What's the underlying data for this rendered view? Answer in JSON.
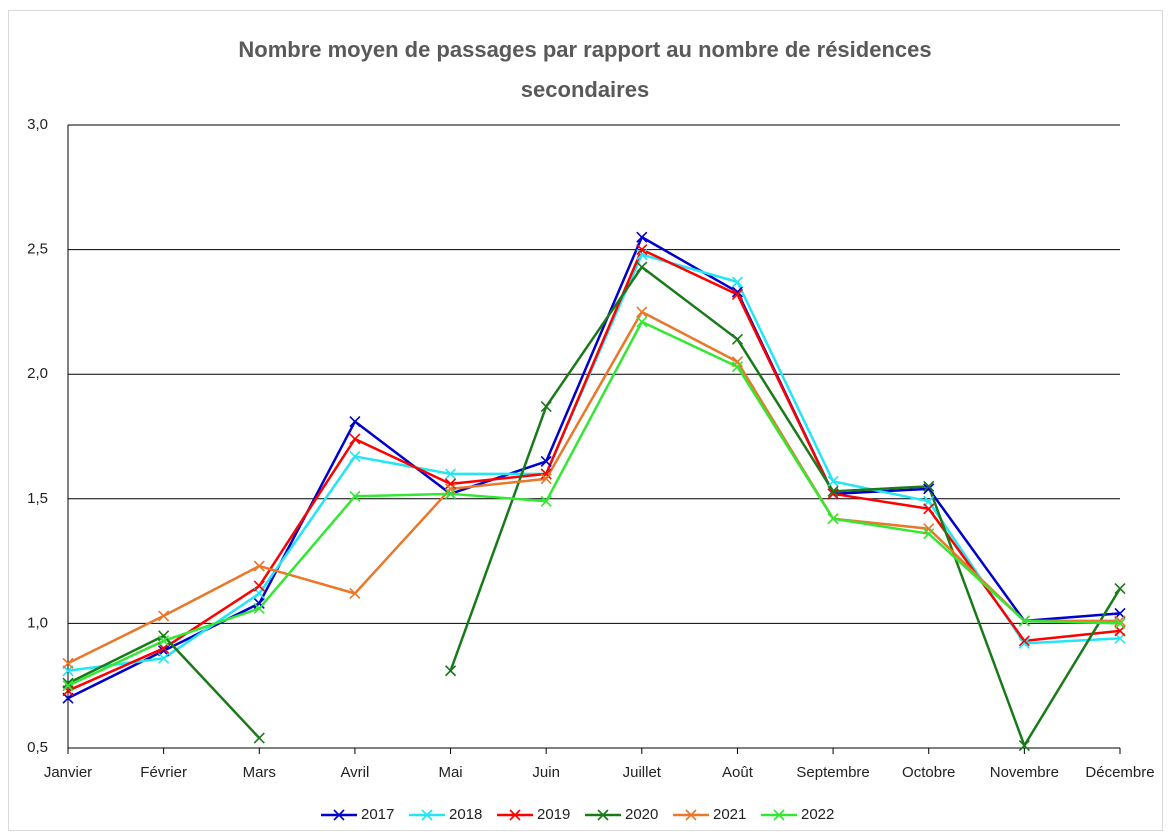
{
  "chart_data": {
    "type": "line",
    "title": "Nombre moyen de passages par rapport au nombre de résidences secondaires",
    "categories": [
      "Janvier",
      "Février",
      "Mars",
      "Avril",
      "Mai",
      "Juin",
      "Juillet",
      "Août",
      "Septembre",
      "Octobre",
      "Novembre",
      "Décembre"
    ],
    "series": [
      {
        "name": "2017",
        "color": "#0000cc",
        "values": [
          0.7,
          0.89,
          1.08,
          1.81,
          1.52,
          1.65,
          2.55,
          2.33,
          1.52,
          1.54,
          1.01,
          1.04
        ]
      },
      {
        "name": "2018",
        "color": "#22e6f5",
        "values": [
          0.81,
          0.86,
          1.12,
          1.67,
          1.6,
          1.6,
          2.48,
          2.37,
          1.57,
          1.49,
          0.92,
          0.94
        ]
      },
      {
        "name": "2019",
        "color": "#ff0000",
        "values": [
          0.73,
          0.9,
          1.15,
          1.74,
          1.56,
          1.6,
          2.5,
          2.32,
          1.52,
          1.46,
          0.93,
          0.97
        ]
      },
      {
        "name": "2020",
        "color": "#1a7a1a",
        "values": [
          0.76,
          0.95,
          0.54,
          null,
          0.81,
          1.87,
          2.43,
          2.14,
          1.53,
          1.55,
          0.51,
          1.14
        ]
      },
      {
        "name": "2021",
        "color": "#e8782a",
        "values": [
          0.84,
          1.03,
          1.23,
          1.12,
          1.54,
          1.58,
          2.25,
          2.05,
          1.42,
          1.38,
          1.01,
          1.01
        ]
      },
      {
        "name": "2022",
        "color": "#33e833",
        "values": [
          0.75,
          0.93,
          1.06,
          1.51,
          1.52,
          1.49,
          2.21,
          2.03,
          1.42,
          1.36,
          1.01,
          1.0
        ]
      }
    ],
    "ylim": [
      0.5,
      3.0
    ],
    "yticks": [
      {
        "value": 0.5,
        "label": "0,5"
      },
      {
        "value": 1.0,
        "label": "1,0"
      },
      {
        "value": 1.5,
        "label": "1,5"
      },
      {
        "value": 2.0,
        "label": "2,0"
      },
      {
        "value": 2.5,
        "label": "2,5"
      },
      {
        "value": 3.0,
        "label": "3,0"
      }
    ],
    "grid": true,
    "legend": "bottom"
  }
}
